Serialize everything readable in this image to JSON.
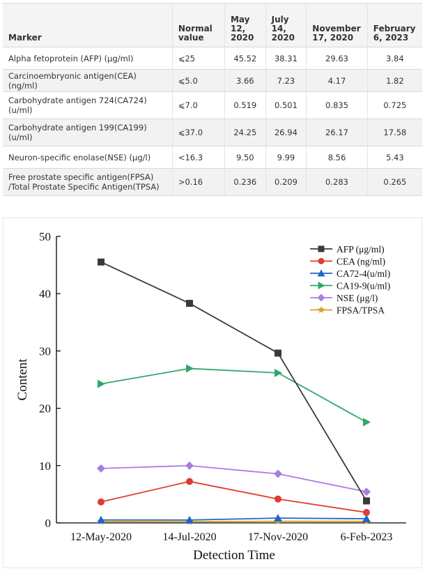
{
  "table": {
    "headers": [
      "Marker",
      "Normal value",
      "May 12, 2020",
      "July 14, 2020",
      "November 17, 2020",
      "February 6, 2023"
    ],
    "header_lines": [
      [
        "Marker"
      ],
      [
        "Normal",
        "value"
      ],
      [
        "May",
        "12,",
        "2020"
      ],
      [
        "July",
        "14,",
        "2020"
      ],
      [
        "November",
        "17, 2020"
      ],
      [
        "February",
        "6, 2023"
      ]
    ],
    "rows": [
      {
        "marker": [
          "Alpha fetoprotein (AFP) (μg/ml)"
        ],
        "normal": "⩽25",
        "values": [
          "45.52",
          "38.31",
          "29.63",
          "3.84"
        ]
      },
      {
        "marker": [
          "Carcinoembryonic antigen(CEA) (ng/ml)"
        ],
        "normal": "⩽5.0",
        "values": [
          "3.66",
          "7.23",
          "4.17",
          "1.82"
        ]
      },
      {
        "marker": [
          "Carbohydrate antigen 724(CA724)",
          "(u/ml)"
        ],
        "normal": "⩽7.0",
        "values": [
          "0.519",
          "0.501",
          "0.835",
          "0.725"
        ]
      },
      {
        "marker": [
          "Carbohydrate antigen 199(CA199)",
          "(u/ml)"
        ],
        "normal": "⩽37.0",
        "values": [
          "24.25",
          "26.94",
          "26.17",
          "17.58"
        ]
      },
      {
        "marker": [
          "Neuron-specific enolase(NSE) (μg/l)"
        ],
        "normal": "<16.3",
        "values": [
          "9.50",
          "9.99",
          "8.56",
          "5.43"
        ]
      },
      {
        "marker": [
          "Free prostate specific antigen(FPSA)",
          "/Total Prostate Specific Antigen(TPSA)"
        ],
        "normal": ">0.16",
        "values": [
          "0.236",
          "0.209",
          "0.283",
          "0.265"
        ]
      }
    ]
  },
  "chart_data": {
    "type": "line",
    "title": "",
    "xlabel": "Detection Time",
    "ylabel": "Content",
    "categories": [
      "12-May-2020",
      "14-Jul-2020",
      "17-Nov-2020",
      "6-Feb-2023"
    ],
    "ylim": [
      0,
      50
    ],
    "yticks": [
      0,
      10,
      20,
      30,
      40,
      50
    ],
    "grid": false,
    "legend_position": "top-right",
    "series": [
      {
        "name": "AFP (μg/ml)",
        "color": "#3a3a3a",
        "marker": "square",
        "values": [
          45.52,
          38.31,
          29.63,
          3.84
        ]
      },
      {
        "name": "CEA (ng/ml)",
        "color": "#e03c31",
        "marker": "circle",
        "values": [
          3.66,
          7.23,
          4.17,
          1.82
        ]
      },
      {
        "name": "CA72-4(u/ml)",
        "color": "#1f66c9",
        "marker": "triangle-up",
        "values": [
          0.519,
          0.501,
          0.835,
          0.725
        ]
      },
      {
        "name": "CA19-9(u/ml)",
        "color": "#2ea86a",
        "marker": "triangle-right",
        "values": [
          24.25,
          26.94,
          26.17,
          17.58
        ]
      },
      {
        "name": "NSE (μg/l)",
        "color": "#a97ee0",
        "marker": "diamond",
        "values": [
          9.5,
          9.99,
          8.56,
          5.43
        ]
      },
      {
        "name": "FPSA/TPSA",
        "color": "#d4a017",
        "marker": "star",
        "values": [
          0.236,
          0.209,
          0.283,
          0.265
        ]
      }
    ]
  }
}
